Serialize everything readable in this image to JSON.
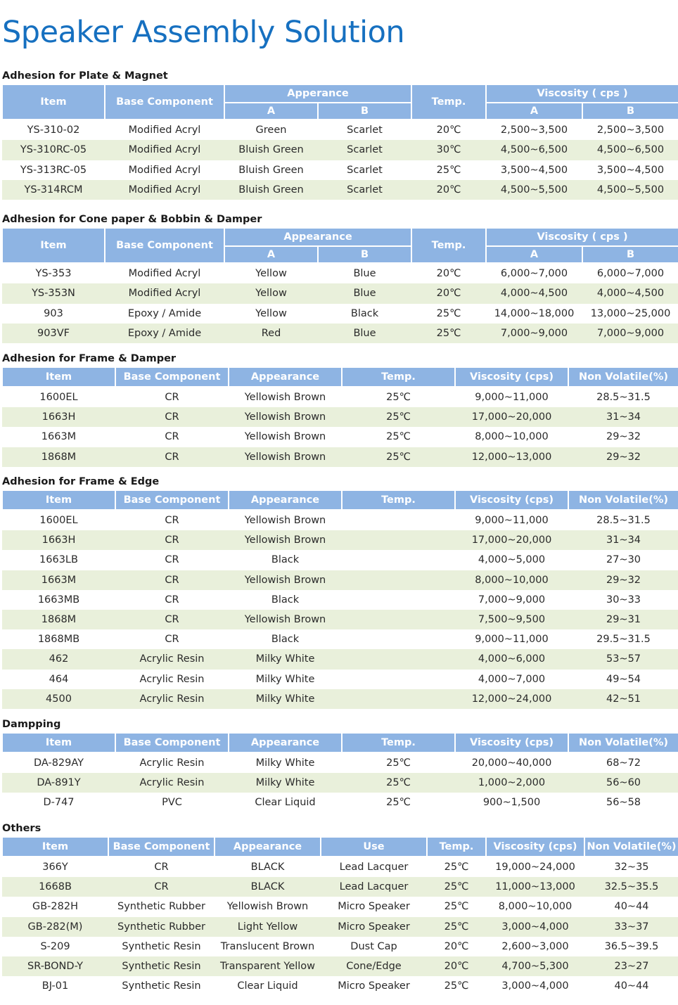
{
  "title": "Speaker Assembly Solution",
  "sections": {
    "plate_magnet": {
      "title": "Adhesion for Plate & Magnet",
      "headers": {
        "item": "Item",
        "base": "Base Component",
        "appearance": "Apperance",
        "temp": "Temp.",
        "viscosity": "Viscosity ( cps )",
        "a": "A",
        "b": "B"
      },
      "rows": [
        [
          "YS-310-02",
          "Modified Acryl",
          "Green",
          "Scarlet",
          "20℃",
          "2,500~3,500",
          "2,500~3,500"
        ],
        [
          "YS-310RC-05",
          "Modified Acryl",
          "Bluish Green",
          "Scarlet",
          "30℃",
          "4,500~6,500",
          "4,500~6,500"
        ],
        [
          "YS-313RC-05",
          "Modified Acryl",
          "Bluish Green",
          "Scarlet",
          "25℃",
          "3,500~4,500",
          "3,500~4,500"
        ],
        [
          "YS-314RCM",
          "Modified Acryl",
          "Bluish Green",
          "Scarlet",
          "20℃",
          "4,500~5,500",
          "4,500~5,500"
        ]
      ]
    },
    "cone_bobbin": {
      "title": "Adhesion for Cone paper & Bobbin & Damper",
      "headers": {
        "item": "Item",
        "base": "Base Component",
        "appearance": "Appearance",
        "temp": "Temp.",
        "viscosity": "Viscosity ( cps )",
        "a": "A",
        "b": "B"
      },
      "rows": [
        [
          "YS-353",
          "Modified Acryl",
          "Yellow",
          "Blue",
          "20℃",
          "6,000~7,000",
          "6,000~7,000"
        ],
        [
          "YS-353N",
          "Modified Acryl",
          "Yellow",
          "Blue",
          "20℃",
          "4,000~4,500",
          "4,000~4,500"
        ],
        [
          "903",
          "Epoxy / Amide",
          "Yellow",
          "Black",
          "25℃",
          "14,000~18,000",
          "13,000~25,000"
        ],
        [
          "903VF",
          "Epoxy / Amide",
          "Red",
          "Blue",
          "25℃",
          "7,000~9,000",
          "7,000~9,000"
        ]
      ]
    },
    "frame_damper": {
      "title": "Adhesion for Frame & Damper",
      "headers": [
        "Item",
        "Base Component",
        "Appearance",
        "Temp.",
        "Viscosity (cps)",
        "Non Volatile(%)"
      ],
      "rows": [
        [
          "1600EL",
          "CR",
          "Yellowish Brown",
          "25℃",
          "9,000~11,000",
          "28.5~31.5"
        ],
        [
          "1663H",
          "CR",
          "Yellowish Brown",
          "25℃",
          "17,000~20,000",
          "31~34"
        ],
        [
          "1663M",
          "CR",
          "Yellowish Brown",
          "25℃",
          "8,000~10,000",
          "29~32"
        ],
        [
          "1868M",
          "CR",
          "Yellowish Brown",
          "25℃",
          "12,000~13,000",
          "29~32"
        ]
      ]
    },
    "frame_edge": {
      "title": "Adhesion for Frame & Edge",
      "headers": [
        "Item",
        "Base Component",
        "Appearance",
        "Temp.",
        "Viscosity (cps)",
        "Non Volatile(%)"
      ],
      "rows": [
        [
          "1600EL",
          "CR",
          "Yellowish Brown",
          "",
          "9,000~11,000",
          "28.5~31.5"
        ],
        [
          "1663H",
          "CR",
          "Yellowish Brown",
          "",
          "17,000~20,000",
          "31~34"
        ],
        [
          "1663LB",
          "CR",
          "Black",
          "",
          "4,000~5,000",
          "27~30"
        ],
        [
          "1663M",
          "CR",
          "Yellowish Brown",
          "",
          "8,000~10,000",
          "29~32"
        ],
        [
          "1663MB",
          "CR",
          "Black",
          "",
          "7,000~9,000",
          "30~33"
        ],
        [
          "1868M",
          "CR",
          "Yellowish Brown",
          "",
          "7,500~9,500",
          "29~31"
        ],
        [
          "1868MB",
          "CR",
          "Black",
          "",
          "9,000~11,000",
          "29.5~31.5"
        ],
        [
          "462",
          "Acrylic Resin",
          "Milky White",
          "",
          "4,000~6,000",
          "53~57"
        ],
        [
          "464",
          "Acrylic Resin",
          "Milky White",
          "",
          "4,000~7,000",
          "49~54"
        ],
        [
          "4500",
          "Acrylic Resin",
          "Milky White",
          "",
          "12,000~24,000",
          "42~51"
        ]
      ]
    },
    "damping": {
      "title": "Dampping",
      "headers": [
        "Item",
        "Base Component",
        "Appearance",
        "Temp.",
        "Viscosity (cps)",
        "Non Volatile(%)"
      ],
      "rows": [
        [
          "DA-829AY",
          "Acrylic Resin",
          "Milky White",
          "25℃",
          "20,000~40,000",
          "68~72"
        ],
        [
          "DA-891Y",
          "Acrylic Resin",
          "Milky White",
          "25℃",
          "1,000~2,000",
          "56~60"
        ],
        [
          "D-747",
          "PVC",
          "Clear Liquid",
          "25℃",
          "900~1,500",
          "56~58"
        ]
      ]
    },
    "others": {
      "title": "Others",
      "headers": [
        "Item",
        "Base Component",
        "Appearance",
        "Use",
        "Temp.",
        "Viscosity (cps)",
        "Non Volatile(%)"
      ],
      "rows": [
        [
          "366Y",
          "CR",
          "BLACK",
          "Lead Lacquer",
          "25℃",
          "19,000~24,000",
          "32~35"
        ],
        [
          "1668B",
          "CR",
          "BLACK",
          "Lead Lacquer",
          "25℃",
          "11,000~13,000",
          "32.5~35.5"
        ],
        [
          "GB-282H",
          "Synthetic Rubber",
          "Yellowish Brown",
          "Micro Speaker",
          "25℃",
          "8,000~10,000",
          "40~44"
        ],
        [
          "GB-282(M)",
          "Synthetic Rubber",
          "Light Yellow",
          "Micro Speaker",
          "25℃",
          "3,000~4,000",
          "33~37"
        ],
        [
          "S-209",
          "Synthetic Resin",
          "Translucent Brown",
          "Dust Cap",
          "20℃",
          "2,600~3,000",
          "36.5~39.5"
        ],
        [
          "SR-BOND-Y",
          "Synthetic Resin",
          "Transparent Yellow",
          "Cone/Edge",
          "20℃",
          "4,700~5,300",
          "23~27"
        ],
        [
          "BJ-01",
          "Synthetic Resin",
          "Clear Liquid",
          "Micro Speaker",
          "25℃",
          "3,000~4,000",
          "40~44"
        ]
      ]
    }
  },
  "colors": {
    "title": "#1670c0",
    "header_bg": "#8eb4e3",
    "stripe": "#e9f0db"
  }
}
